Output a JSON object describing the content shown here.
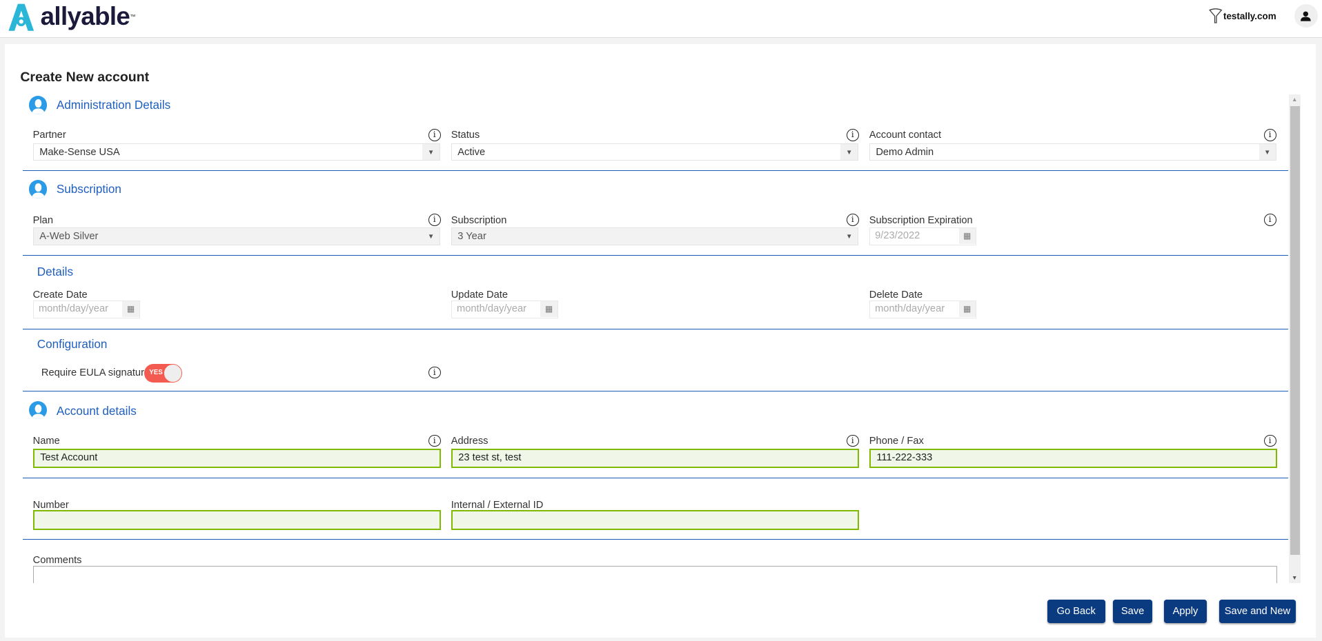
{
  "header": {
    "logo": "allyable",
    "domain": "testally.com"
  },
  "page": {
    "title": "Create New account"
  },
  "admin": {
    "title": "Administration Details",
    "partner": {
      "label": "Partner",
      "value": "Make-Sense USA"
    },
    "status": {
      "label": "Status",
      "value": "Active"
    },
    "contact": {
      "label": "Account contact",
      "value": "Demo Admin"
    }
  },
  "subscription": {
    "title": "Subscription",
    "plan": {
      "label": "Plan",
      "value": "A-Web Silver"
    },
    "sub": {
      "label": "Subscription",
      "value": "3 Year"
    },
    "exp": {
      "label": "Subscription Expiration",
      "value": "9/23/2022"
    }
  },
  "details": {
    "title": "Details",
    "create": {
      "label": "Create Date",
      "placeholder": "month/day/year"
    },
    "update": {
      "label": "Update Date",
      "placeholder": "month/day/year"
    },
    "delete": {
      "label": "Delete Date",
      "placeholder": "month/day/year"
    }
  },
  "config": {
    "title": "Configuration",
    "eula_label": "Require EULA signature",
    "eula_toggle": "YES"
  },
  "account": {
    "title": "Account details",
    "name": {
      "label": "Name",
      "value": "Test Account"
    },
    "address": {
      "label": "Address",
      "value": "23 test st, test"
    },
    "phone": {
      "label": "Phone / Fax",
      "value": "111-222-333"
    },
    "number": {
      "label": "Number",
      "value": ""
    },
    "ext_id": {
      "label": "Internal / External ID",
      "value": ""
    },
    "comments": {
      "label": "Comments",
      "value": ""
    }
  },
  "buttons": {
    "go_back": "Go Back",
    "save": "Save",
    "apply": "Apply",
    "save_new": "Save and New"
  },
  "colors": {
    "accent": "#1f5fbf",
    "button": "#0a3a80",
    "valid_border": "#7fba00",
    "toggle_on": "#f45b50"
  }
}
